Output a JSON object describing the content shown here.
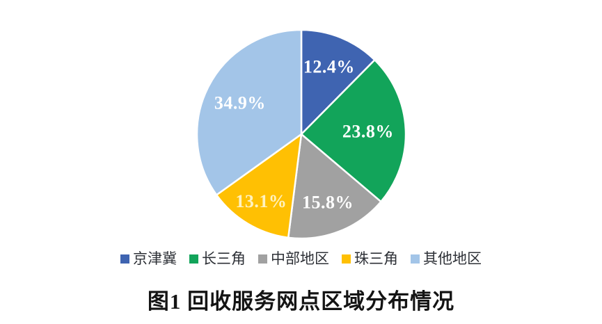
{
  "chart_data": {
    "type": "pie",
    "title": "图1 回收服务网点区域分布情况",
    "legend_position": "bottom",
    "start_angle_deg": 0,
    "direction": "clockwise",
    "slices": [
      {
        "label": "京津冀",
        "value": 12.4,
        "display": "12.4%",
        "color": "#3F64B1",
        "label_color": "#FFFFFF"
      },
      {
        "label": "长三角",
        "value": 23.8,
        "display": "23.8%",
        "color": "#12A45A",
        "label_color": "#FFFFFF"
      },
      {
        "label": "中部地区",
        "value": 15.8,
        "display": "15.8%",
        "color": "#A1A1A1",
        "label_color": "#FFFFFF"
      },
      {
        "label": "珠三角",
        "value": 13.1,
        "display": "13.1%",
        "color": "#FFC003",
        "label_color": "#FFF2C0"
      },
      {
        "label": "其他地区",
        "value": 34.9,
        "display": "34.9%",
        "color": "#A3C5E8",
        "label_color": "#FFFFFF"
      }
    ]
  },
  "caption": "图1 回收服务网点区域分布情况"
}
